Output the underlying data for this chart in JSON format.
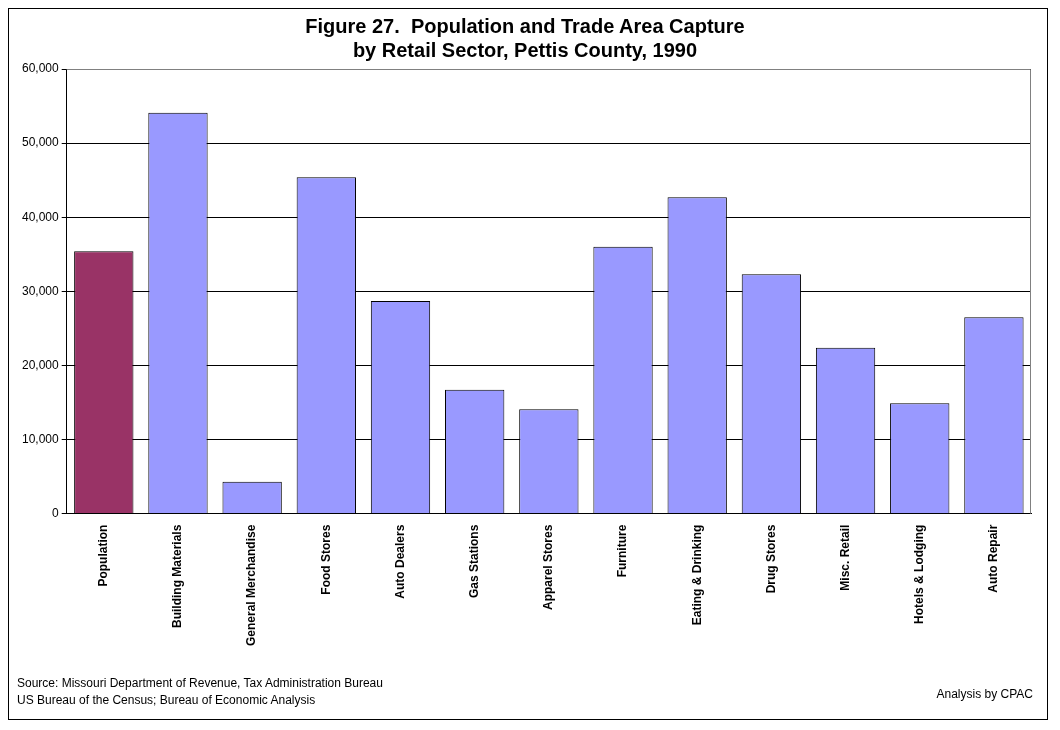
{
  "chart_data": {
    "type": "bar",
    "title": "Figure 27.  Population and Trade Area Capture\nby Retail Sector, Pettis County, 1990",
    "categories": [
      "Population",
      "Building Materials",
      "General Merchandise",
      "Food Stores",
      "Auto Dealers",
      "Gas Stations",
      "Apparel Stores",
      "Furniture",
      "Eating & Drinking",
      "Drug Stores",
      "Misc. Retail",
      "Hotels & Lodging",
      "Auto Repair"
    ],
    "values": [
      35400,
      54100,
      4300,
      45400,
      28700,
      16700,
      14100,
      36000,
      42700,
      32300,
      22400,
      14900,
      26500
    ],
    "colors": [
      "#993366",
      "#9999ff",
      "#9999ff",
      "#9999ff",
      "#9999ff",
      "#9999ff",
      "#9999ff",
      "#9999ff",
      "#9999ff",
      "#9999ff",
      "#9999ff",
      "#9999ff",
      "#9999ff"
    ],
    "ylim": [
      0,
      60000
    ],
    "yticks": [
      0,
      {
        "value": 10000,
        "label": "10,000"
      },
      {
        "value": 20000,
        "label": "20,000"
      },
      {
        "value": 30000,
        "label": "30,000"
      },
      {
        "value": 40000,
        "label": "40,000"
      },
      {
        "value": 50000,
        "label": "50,000"
      },
      {
        "value": 60000,
        "label": "60,000"
      }
    ],
    "grid": "y",
    "legend": false,
    "annotations": [
      "Source: Missouri Department of Revenue, Tax Administration Bureau",
      "US Bureau of the Census; Bureau of Economic Analysis",
      "Analysis by CPAC"
    ]
  }
}
